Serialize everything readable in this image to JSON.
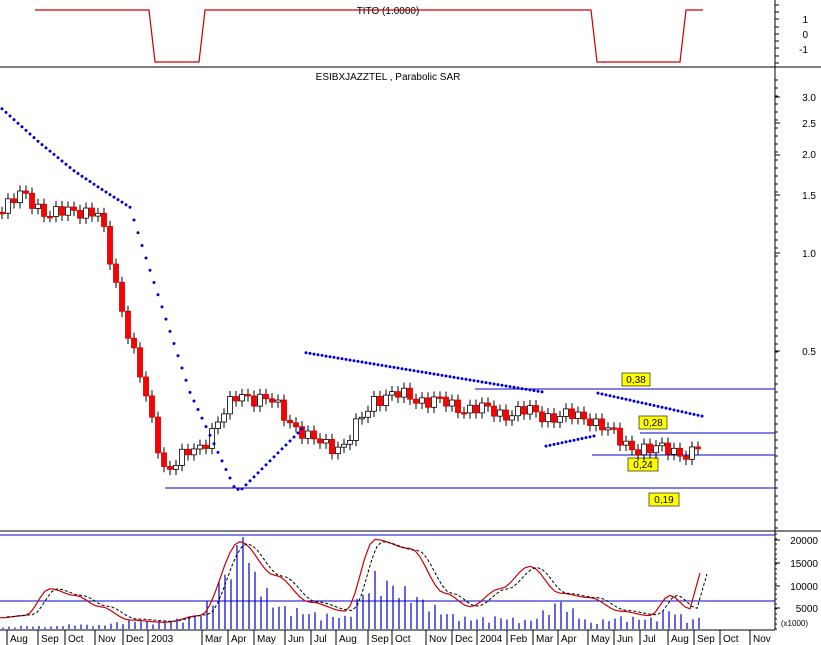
{
  "panels": {
    "tito": {
      "title": "TITO (1.0000)",
      "y_ticks": [
        "1",
        "0",
        "-1"
      ]
    },
    "price": {
      "title": "ESIBXJAZZTEL , Parabolic SAR",
      "y_ticks": [
        "3.0",
        "2.5",
        "2.0",
        "1.5",
        "1.0",
        "0.5"
      ],
      "level_labels": [
        "0,38",
        "0,28",
        "0,24",
        "0,19"
      ]
    },
    "volume": {
      "y_ticks": [
        "20000",
        "15000",
        "10000",
        "5000"
      ],
      "scale_label": "(x1000)"
    },
    "x_axis": {
      "labels": [
        "Aug",
        "Sep",
        "Oct",
        "Nov",
        "Dec",
        "2003",
        "Mar",
        "Apr",
        "May",
        "Jun",
        "Jul",
        "Aug",
        "Sep",
        "Oct",
        "Nov",
        "Dec",
        "2004",
        "Feb",
        "Mar",
        "Apr",
        "May",
        "Jun",
        "Jul",
        "Aug",
        "Sep",
        "Oct",
        "Nov"
      ]
    }
  },
  "colors": {
    "up_candle": "#ffffff",
    "down_candle": "#ff0000",
    "sar_dots": "#0000cc",
    "level_lines": "#0000cc",
    "tito_line": "#cc0000",
    "stoch_line": "#cc0000",
    "volume_bars": "#0000cc",
    "label_bg": "#ffff00"
  },
  "chart_data": [
    {
      "type": "line",
      "title": "TITO (1.0000)",
      "x": [
        "Aug",
        "Sep",
        "Oct",
        "Nov",
        "Dec",
        "2003",
        "Mar",
        "Apr",
        "May",
        "Jun",
        "Jul",
        "Aug",
        "Sep",
        "Oct",
        "Nov",
        "Dec",
        "2004",
        "Feb",
        "Mar",
        "Apr",
        "May",
        "Jun",
        "Jul",
        "Aug",
        "Sep"
      ],
      "values": [
        1,
        1,
        1,
        1,
        1,
        -1,
        -1,
        1,
        1,
        1,
        1,
        1,
        1,
        1,
        1,
        1,
        1,
        1,
        1,
        1,
        -1,
        -1,
        -1,
        1,
        1
      ],
      "ylim": [
        -1.5,
        1.5
      ]
    },
    {
      "type": "candlestick",
      "title": "ESIBXJAZZTEL , Parabolic SAR",
      "y_scale": "log",
      "ylim": [
        0.15,
        3.5
      ],
      "series": [
        {
          "name": "price_close",
          "x": [
            "Aug",
            "Sep",
            "Oct",
            "Nov",
            "Dec",
            "2003",
            "Mar",
            "Apr",
            "May",
            "Jun",
            "Jul",
            "Aug",
            "Sep",
            "Oct",
            "Nov",
            "Dec",
            "2004",
            "Feb",
            "Mar",
            "Apr",
            "May",
            "Jun",
            "Jul",
            "Aug",
            "Sep"
          ],
          "values": [
            1.35,
            1.55,
            1.3,
            1.4,
            1.3,
            0.55,
            0.22,
            0.26,
            0.38,
            0.35,
            0.27,
            0.26,
            0.37,
            0.37,
            0.35,
            0.34,
            0.33,
            0.33,
            0.32,
            0.32,
            0.27,
            0.25,
            0.26,
            0.24,
            0.26
          ]
        },
        {
          "name": "parabolic_sar",
          "x": [
            "Aug",
            "Sep",
            "Oct",
            "Nov",
            "Dec",
            "2003",
            "Mar",
            "Apr",
            "May",
            "Jun",
            "Jul",
            "Aug",
            "Sep",
            "Oct",
            "Nov",
            "Dec",
            "2004",
            "Feb",
            "Mar",
            "Apr",
            "May",
            "Jun",
            "Jul",
            "Aug",
            "Sep"
          ],
          "values": [
            2.8,
            2.2,
            1.8,
            1.6,
            1.4,
            1.0,
            0.38,
            0.19,
            0.21,
            0.27,
            0.5,
            0.46,
            0.43,
            0.42,
            0.4,
            0.38,
            0.37,
            0.36,
            0.35,
            0.25,
            0.27,
            0.38,
            0.35,
            0.33,
            0.31
          ]
        }
      ],
      "levels": [
        0.38,
        0.28,
        0.24,
        0.19
      ]
    },
    {
      "type": "bar",
      "title": "",
      "ylim": [
        0,
        21000
      ],
      "x": [
        "Aug",
        "Sep",
        "Oct",
        "Nov",
        "Dec",
        "2003",
        "Mar",
        "Apr",
        "May",
        "Jun",
        "Jul",
        "Aug",
        "Sep",
        "Oct",
        "Nov",
        "Dec",
        "2004",
        "Feb",
        "Mar",
        "Apr",
        "May",
        "Jun",
        "Jul",
        "Aug",
        "Sep"
      ],
      "series": [
        {
          "name": "volume",
          "values": [
            400,
            800,
            600,
            1200,
            900,
            2200,
            1800,
            3500,
            20000,
            6000,
            4000,
            3000,
            13000,
            9000,
            4000,
            2500,
            3000,
            2000,
            7000,
            1500,
            3000,
            2500,
            5000,
            2000,
            3000
          ]
        },
        {
          "name": "stochastic",
          "values": [
            2500,
            3000,
            9000,
            7500,
            5000,
            2000,
            1500,
            3000,
            19500,
            12000,
            6000,
            4000,
            20000,
            18000,
            8000,
            5000,
            9000,
            14000,
            8000,
            7000,
            4000,
            3000,
            7500,
            4500,
            12500
          ]
        }
      ],
      "hlines": [
        20800,
        6800
      ]
    }
  ]
}
